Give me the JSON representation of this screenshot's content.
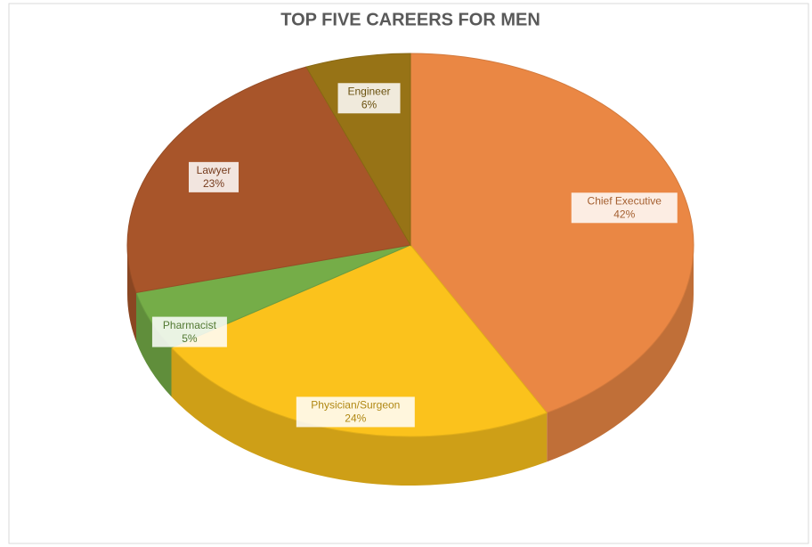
{
  "chart_data": {
    "type": "pie",
    "title": "TOP FIVE CAREERS FOR MEN",
    "categories": [
      "Chief Executive",
      "Physician/Surgeon",
      "Pharmacist",
      "Lawyer",
      "Engineer"
    ],
    "values": [
      42,
      24,
      5,
      23,
      6
    ],
    "value_labels": [
      "42%",
      "24%",
      "5%",
      "23%",
      "6%"
    ],
    "colors": [
      "#ea8744",
      "#fbc21c",
      "#75ad48",
      "#a8552a",
      "#977316"
    ]
  }
}
